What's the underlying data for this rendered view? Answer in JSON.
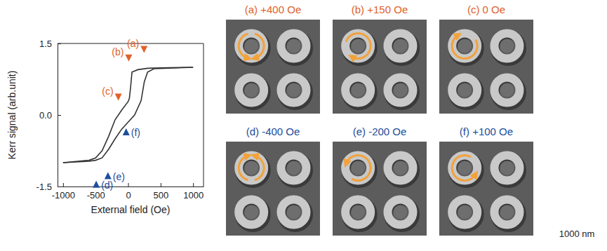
{
  "chart_data": {
    "type": "line",
    "x_label": "External field (Oe)",
    "y_label": "Kerr signal (arb.unit)",
    "xlim": [
      -1085,
      1160
    ],
    "ylim": [
      -1.5,
      1.5
    ],
    "xticks": [
      -1000,
      -500,
      0,
      500,
      1000
    ],
    "yticks": [
      -1.5,
      {
        "value": 0,
        "label": "0.0"
      },
      1.5
    ],
    "series": [
      {
        "color": "#333333",
        "x": [
          1000,
          500,
          300,
          150,
          60,
          40,
          20,
          0,
          -100,
          -200,
          -300,
          -400,
          -500,
          -600,
          -1000
        ],
        "values": [
          1.0,
          0.99,
          0.98,
          0.95,
          0.9,
          0.6,
          0.35,
          0.28,
          0.1,
          -0.1,
          -0.45,
          -0.75,
          -0.9,
          -0.95,
          -1.0
        ]
      },
      {
        "color": "#333333",
        "x": [
          -1000,
          -600,
          -500,
          -400,
          -300,
          -200,
          -100,
          0,
          100,
          200,
          250,
          300,
          400,
          1000
        ],
        "values": [
          -1.0,
          -0.97,
          -0.95,
          -0.9,
          -0.72,
          -0.5,
          -0.3,
          -0.15,
          0.0,
          0.3,
          0.7,
          0.9,
          0.97,
          1.0
        ]
      }
    ],
    "annotations": [
      {
        "text": "(a)",
        "x": 245,
        "y": 1.3,
        "color": "#e0622a",
        "marker": "triangle-down"
      },
      {
        "text": "(b)",
        "x": 10,
        "y": 1.12,
        "color": "#e0622a",
        "marker": "triangle-down"
      },
      {
        "text": "(c)",
        "x": -150,
        "y": 0.3,
        "color": "#e0622a",
        "marker": "triangle-down"
      },
      {
        "text": "(d)",
        "x": -490,
        "y": -1.38,
        "color": "#1d4e9c",
        "marker": "triangle-up"
      },
      {
        "text": "(e)",
        "x": -310,
        "y": -1.2,
        "color": "#1d4e9c",
        "marker": "triangle-up"
      },
      {
        "text": "(f)",
        "x": -30,
        "y": -0.28,
        "color": "#1d4e9c",
        "marker": "triangle-up"
      }
    ]
  },
  "panels": [
    {
      "title": "(a) +400 Oe",
      "color": "#e0622a"
    },
    {
      "title": "(b) +150 Oe",
      "color": "#e0622a"
    },
    {
      "title": "(c) 0 Oe",
      "color": "#e0622a"
    },
    {
      "title": "(d) -400 Oe",
      "color": "#1d4e9c"
    },
    {
      "title": "(e) -200 Oe",
      "color": "#1d4e9c"
    },
    {
      "title": "(f) +100 Oe",
      "color": "#1d4e9c"
    }
  ],
  "scale_label": "1000 nm"
}
